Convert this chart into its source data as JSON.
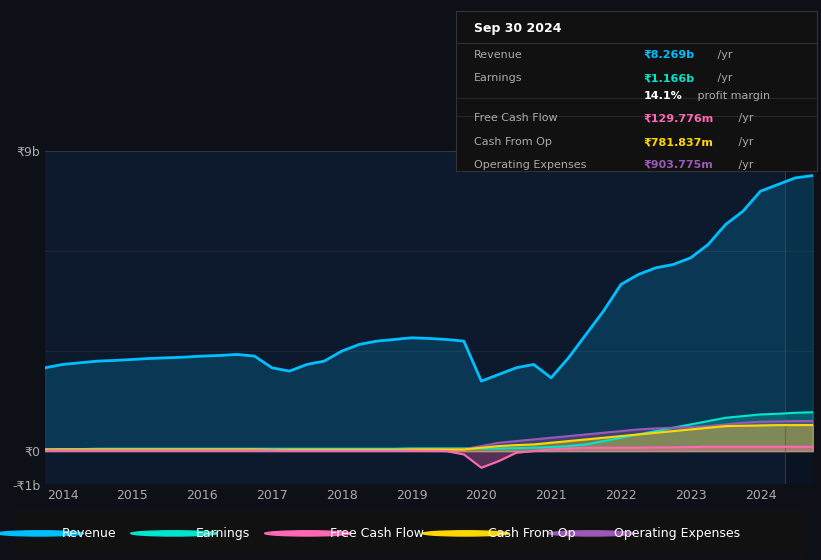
{
  "bg_color": "#0d1117",
  "chart_bg": "#0d1a2e",
  "years": [
    2013.75,
    2014.0,
    2014.25,
    2014.5,
    2014.75,
    2015.0,
    2015.25,
    2015.5,
    2015.75,
    2016.0,
    2016.25,
    2016.5,
    2016.75,
    2017.0,
    2017.25,
    2017.5,
    2017.75,
    2018.0,
    2018.25,
    2018.5,
    2018.75,
    2019.0,
    2019.25,
    2019.5,
    2019.75,
    2020.0,
    2020.25,
    2020.5,
    2020.75,
    2021.0,
    2021.25,
    2021.5,
    2021.75,
    2022.0,
    2022.25,
    2022.5,
    2022.75,
    2023.0,
    2023.25,
    2023.5,
    2023.75,
    2024.0,
    2024.25,
    2024.5,
    2024.75
  ],
  "revenue": [
    2500000000,
    2600000000,
    2650000000,
    2700000000,
    2720000000,
    2750000000,
    2780000000,
    2800000000,
    2820000000,
    2850000000,
    2870000000,
    2900000000,
    2850000000,
    2500000000,
    2400000000,
    2600000000,
    2700000000,
    3000000000,
    3200000000,
    3300000000,
    3350000000,
    3400000000,
    3380000000,
    3350000000,
    3300000000,
    2100000000,
    2300000000,
    2500000000,
    2600000000,
    2200000000,
    2800000000,
    3500000000,
    4200000000,
    5000000000,
    5300000000,
    5500000000,
    5600000000,
    5800000000,
    6200000000,
    6800000000,
    7200000000,
    7800000000,
    8000000000,
    8200000000,
    8269000000
  ],
  "earnings": [
    50000000,
    60000000,
    60000000,
    70000000,
    70000000,
    70000000,
    70000000,
    70000000,
    70000000,
    70000000,
    70000000,
    70000000,
    70000000,
    70000000,
    70000000,
    70000000,
    70000000,
    70000000,
    70000000,
    70000000,
    70000000,
    80000000,
    80000000,
    80000000,
    80000000,
    80000000,
    80000000,
    90000000,
    100000000,
    120000000,
    150000000,
    200000000,
    300000000,
    400000000,
    500000000,
    600000000,
    700000000,
    800000000,
    900000000,
    1000000000,
    1050000000,
    1100000000,
    1120000000,
    1150000000,
    1166000000
  ],
  "free_cash_flow": [
    20000000,
    20000000,
    20000000,
    20000000,
    20000000,
    20000000,
    20000000,
    20000000,
    20000000,
    20000000,
    20000000,
    20000000,
    20000000,
    20000000,
    10000000,
    10000000,
    10000000,
    10000000,
    10000000,
    10000000,
    10000000,
    10000000,
    5000000,
    0,
    -100000000,
    -500000000,
    -300000000,
    -50000000,
    0,
    50000000,
    80000000,
    100000000,
    100000000,
    100000000,
    100000000,
    110000000,
    110000000,
    120000000,
    130000000,
    130000000,
    130000000,
    130000000,
    130000000,
    130000000,
    129800000
  ],
  "cash_from_op": [
    50000000,
    50000000,
    50000000,
    50000000,
    50000000,
    50000000,
    50000000,
    50000000,
    50000000,
    50000000,
    50000000,
    50000000,
    50000000,
    40000000,
    40000000,
    40000000,
    40000000,
    40000000,
    40000000,
    40000000,
    40000000,
    50000000,
    50000000,
    50000000,
    50000000,
    100000000,
    150000000,
    180000000,
    200000000,
    250000000,
    300000000,
    350000000,
    400000000,
    450000000,
    500000000,
    550000000,
    600000000,
    650000000,
    700000000,
    750000000,
    760000000,
    770000000,
    780000000,
    780000000,
    781837000
  ],
  "operating_expenses": [
    30000000,
    30000000,
    30000000,
    30000000,
    30000000,
    30000000,
    30000000,
    30000000,
    30000000,
    30000000,
    30000000,
    30000000,
    30000000,
    30000000,
    30000000,
    30000000,
    30000000,
    30000000,
    30000000,
    30000000,
    30000000,
    40000000,
    40000000,
    50000000,
    60000000,
    150000000,
    250000000,
    300000000,
    350000000,
    400000000,
    450000000,
    500000000,
    550000000,
    600000000,
    650000000,
    680000000,
    700000000,
    720000000,
    750000000,
    800000000,
    850000000,
    880000000,
    890000000,
    900000000,
    903775000
  ],
  "revenue_color": "#00bfff",
  "earnings_color": "#00e5cc",
  "fcf_color": "#ff69b4",
  "cfop_color": "#ffd700",
  "opex_color": "#9b59b6",
  "ylim_min": -1000000000,
  "ylim_max": 9000000000,
  "yticks": [
    -1000000000,
    0,
    3000000000,
    6000000000,
    9000000000
  ],
  "ytick_labels": [
    "-₹1b",
    "₹0",
    "",
    "",
    "₹9b"
  ],
  "xticks": [
    2014,
    2015,
    2016,
    2017,
    2018,
    2019,
    2020,
    2021,
    2022,
    2023,
    2024
  ],
  "info_box_title": "Sep 30 2024",
  "info_rows": [
    {
      "label": "Revenue",
      "value": "₹8.269b",
      "unit": " /yr",
      "color": "#00bfff"
    },
    {
      "label": "Earnings",
      "value": "₹1.166b",
      "unit": " /yr",
      "color": "#00e5cc"
    },
    {
      "label": "",
      "value": "14.1%",
      "unit": " profit margin",
      "color": "#ffffff"
    },
    {
      "label": "Free Cash Flow",
      "value": "₹129.776m",
      "unit": " /yr",
      "color": "#ff69b4"
    },
    {
      "label": "Cash From Op",
      "value": "₹781.837m",
      "unit": " /yr",
      "color": "#ffd700"
    },
    {
      "label": "Operating Expenses",
      "value": "₹903.775m",
      "unit": " /yr",
      "color": "#9b59b6"
    }
  ],
  "legend_entries": [
    {
      "label": "Revenue",
      "color": "#00bfff"
    },
    {
      "label": "Earnings",
      "color": "#00e5cc"
    },
    {
      "label": "Free Cash Flow",
      "color": "#ff69b4"
    },
    {
      "label": "Cash From Op",
      "color": "#ffd700"
    },
    {
      "label": "Operating Expenses",
      "color": "#9b59b6"
    }
  ]
}
